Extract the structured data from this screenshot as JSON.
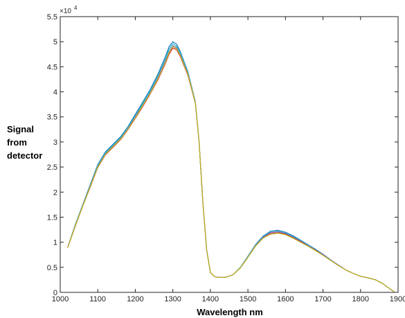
{
  "chart_data": {
    "type": "line",
    "title": "",
    "xlabel": "Wavelength nm",
    "ylabel_lines": [
      "Signal",
      "from",
      "detector"
    ],
    "y_multiplier": "×10",
    "y_exponent": "4",
    "xlim": [
      1000,
      1900
    ],
    "ylim": [
      0,
      5.5
    ],
    "x_ticks": [
      1000,
      1100,
      1200,
      1300,
      1400,
      1500,
      1600,
      1700,
      1800,
      1900
    ],
    "x_tick_labels": [
      "1000",
      "1100",
      "1200",
      "1300",
      "1400",
      "1500",
      "1600",
      "1700",
      "1800",
      "1900"
    ],
    "y_ticks": [
      0,
      0.5,
      1,
      1.5,
      2,
      2.5,
      3,
      3.5,
      4,
      4.5,
      5,
      5.5
    ],
    "y_tick_labels": [
      "0",
      "0.5",
      "1",
      "1.5",
      "2",
      "2.5",
      "3",
      "3.5",
      "4",
      "4.5",
      "5",
      "5.5"
    ],
    "grid": false,
    "legend": "none",
    "x": [
      1020,
      1040,
      1060,
      1080,
      1100,
      1120,
      1140,
      1160,
      1180,
      1200,
      1220,
      1240,
      1260,
      1280,
      1290,
      1300,
      1310,
      1320,
      1340,
      1360,
      1370,
      1380,
      1390,
      1400,
      1410,
      1420,
      1430,
      1440,
      1460,
      1480,
      1500,
      1520,
      1540,
      1560,
      1580,
      1600,
      1620,
      1640,
      1660,
      1680,
      1700,
      1720,
      1740,
      1760,
      1780,
      1800,
      1820,
      1840,
      1860,
      1880,
      1890
    ],
    "series": [
      {
        "color": "#1f77b4",
        "values": [
          0.9,
          1.35,
          1.75,
          2.15,
          2.55,
          2.8,
          2.95,
          3.1,
          3.3,
          3.55,
          3.8,
          4.05,
          4.35,
          4.7,
          4.9,
          5.0,
          4.95,
          4.8,
          4.4,
          3.8,
          3.0,
          1.8,
          0.85,
          0.4,
          0.32,
          0.3,
          0.3,
          0.3,
          0.35,
          0.5,
          0.72,
          0.95,
          1.12,
          1.22,
          1.24,
          1.2,
          1.13,
          1.04,
          0.95,
          0.86,
          0.76,
          0.65,
          0.55,
          0.45,
          0.38,
          0.32,
          0.29,
          0.25,
          0.17,
          0.06,
          0.01
        ]
      },
      {
        "color": "#17becf",
        "values": [
          0.9,
          1.34,
          1.74,
          2.13,
          2.53,
          2.78,
          2.93,
          3.08,
          3.28,
          3.52,
          3.77,
          4.02,
          4.31,
          4.65,
          4.85,
          4.96,
          4.91,
          4.77,
          4.38,
          3.79,
          3.0,
          1.8,
          0.85,
          0.4,
          0.32,
          0.3,
          0.3,
          0.3,
          0.35,
          0.5,
          0.71,
          0.94,
          1.1,
          1.2,
          1.22,
          1.18,
          1.11,
          1.03,
          0.94,
          0.85,
          0.75,
          0.64,
          0.55,
          0.45,
          0.38,
          0.32,
          0.29,
          0.25,
          0.17,
          0.06,
          0.01
        ]
      },
      {
        "color": "#9467bd",
        "values": [
          0.9,
          1.33,
          1.73,
          2.12,
          2.51,
          2.76,
          2.91,
          3.06,
          3.26,
          3.5,
          3.74,
          3.99,
          4.28,
          4.61,
          4.8,
          4.92,
          4.88,
          4.74,
          4.36,
          3.78,
          3.0,
          1.8,
          0.85,
          0.4,
          0.32,
          0.3,
          0.3,
          0.3,
          0.35,
          0.49,
          0.7,
          0.93,
          1.09,
          1.19,
          1.21,
          1.17,
          1.1,
          1.02,
          0.93,
          0.84,
          0.75,
          0.64,
          0.55,
          0.45,
          0.38,
          0.32,
          0.29,
          0.25,
          0.17,
          0.06,
          0.01
        ]
      },
      {
        "color": "#d62728",
        "values": [
          0.89,
          1.32,
          1.72,
          2.1,
          2.49,
          2.74,
          2.89,
          3.04,
          3.24,
          3.47,
          3.71,
          3.96,
          4.24,
          4.56,
          4.75,
          4.87,
          4.84,
          4.7,
          4.33,
          3.77,
          3.0,
          1.8,
          0.85,
          0.4,
          0.32,
          0.3,
          0.3,
          0.3,
          0.35,
          0.49,
          0.7,
          0.92,
          1.08,
          1.17,
          1.19,
          1.16,
          1.09,
          1.01,
          0.92,
          0.84,
          0.74,
          0.64,
          0.54,
          0.45,
          0.38,
          0.32,
          0.29,
          0.25,
          0.17,
          0.06,
          0.01
        ]
      },
      {
        "color": "#bcbd22",
        "values": [
          0.89,
          1.33,
          1.72,
          2.11,
          2.5,
          2.75,
          2.9,
          3.05,
          3.25,
          3.48,
          3.73,
          3.97,
          4.26,
          4.58,
          4.78,
          4.9,
          4.86,
          4.72,
          4.35,
          3.78,
          3.0,
          1.8,
          0.85,
          0.4,
          0.32,
          0.3,
          0.3,
          0.3,
          0.35,
          0.49,
          0.7,
          0.92,
          1.08,
          1.16,
          1.18,
          1.15,
          1.08,
          1.0,
          0.92,
          0.83,
          0.74,
          0.64,
          0.54,
          0.45,
          0.38,
          0.32,
          0.29,
          0.25,
          0.17,
          0.06,
          0.01
        ]
      }
    ]
  }
}
